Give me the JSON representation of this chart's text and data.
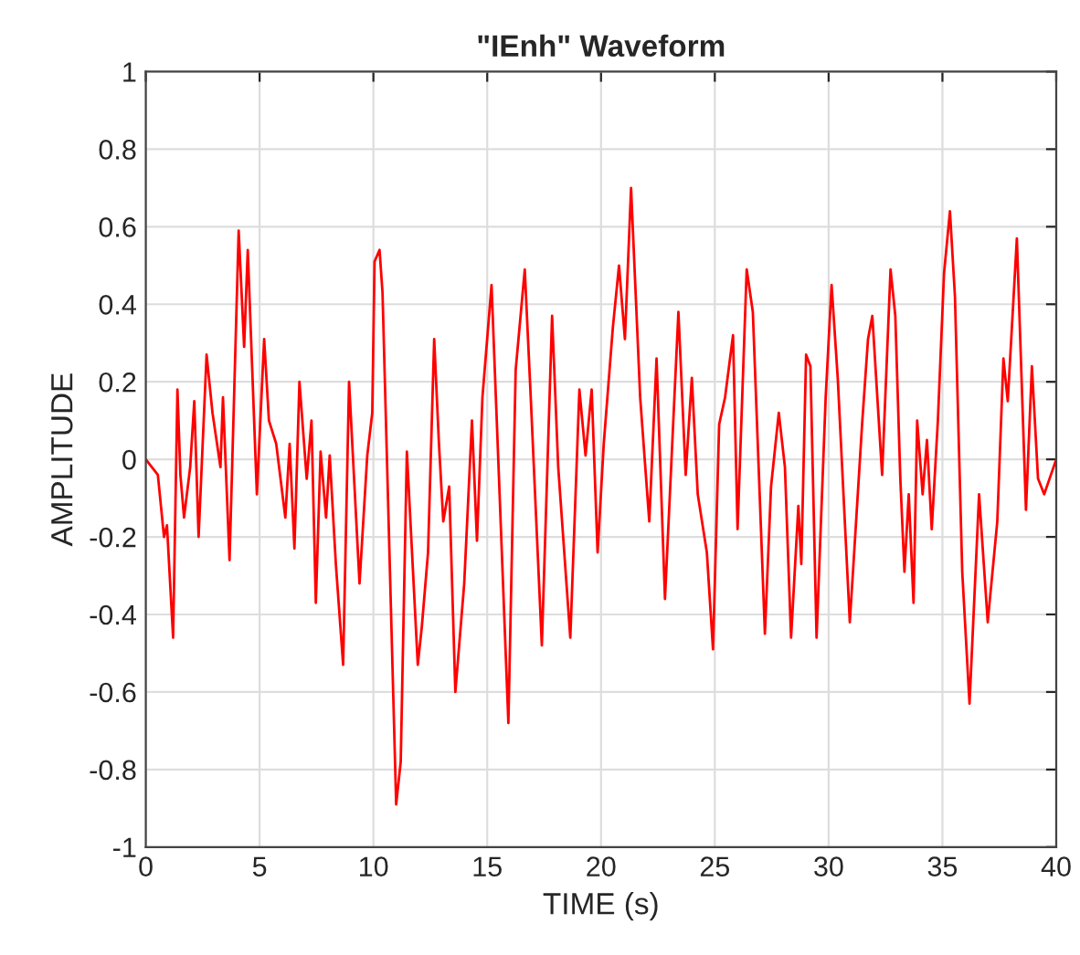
{
  "chart_data": {
    "type": "line",
    "title": "\"IEnh\" Waveform",
    "xlabel": "TIME (s)",
    "ylabel": "AMPLITUDE",
    "xlim": [
      0,
      40
    ],
    "xticks": [
      0,
      5,
      10,
      15,
      20,
      25,
      30,
      35,
      40
    ],
    "ylim": [
      -1,
      1
    ],
    "yticks": [
      -1,
      -0.8,
      -0.6,
      -0.4,
      -0.2,
      0,
      0.2,
      0.4,
      0.6,
      0.8,
      1
    ],
    "grid": true,
    "legend": false,
    "marker": "none",
    "line_style": "solid",
    "series": [
      {
        "color": "#ff0000",
        "x": [
          0,
          0.53,
          0.8,
          0.93,
          1.2,
          1.39,
          1.52,
          1.68,
          1.95,
          2.13,
          2.32,
          2.67,
          2.93,
          3.28,
          3.39,
          3.68,
          4.08,
          4.32,
          4.48,
          4.88,
          5.2,
          5.41,
          5.73,
          6.13,
          6.32,
          6.53,
          6.75,
          7.07,
          7.28,
          7.47,
          7.68,
          7.92,
          8.08,
          8.35,
          8.67,
          8.93,
          9.39,
          9.73,
          9.95,
          10.05,
          10.27,
          10.4,
          11.0,
          11.2,
          11.47,
          11.95,
          12.13,
          12.4,
          12.67,
          12.88,
          13.07,
          13.33,
          13.6,
          13.99,
          14.33,
          14.55,
          14.79,
          15.19,
          15.4,
          15.93,
          16.25,
          16.65,
          16.92,
          17.4,
          17.85,
          18.12,
          18.65,
          19.05,
          19.32,
          19.59,
          19.85,
          20.12,
          20.52,
          20.79,
          21.05,
          21.32,
          21.72,
          22.12,
          22.44,
          22.81,
          23.4,
          23.72,
          23.99,
          24.25,
          24.65,
          24.92,
          25.19,
          25.45,
          25.8,
          26.0,
          26.4,
          26.67,
          27.2,
          27.47,
          27.81,
          28.08,
          28.35,
          28.67,
          28.8,
          29.01,
          29.2,
          29.47,
          29.87,
          30.13,
          30.4,
          30.93,
          31.07,
          31.47,
          31.73,
          31.92,
          32.35,
          32.72,
          32.93,
          33.15,
          33.33,
          33.52,
          33.73,
          33.89,
          34.13,
          34.32,
          34.53,
          34.8,
          35.07,
          35.33,
          35.55,
          35.87,
          36.19,
          36.61,
          36.99,
          37.41,
          37.68,
          37.87,
          38.27,
          38.67,
          38.93,
          39.2,
          39.47,
          40.0
        ],
        "values": [
          0,
          -0.04,
          -0.2,
          -0.17,
          -0.46,
          0.18,
          -0.04,
          -0.15,
          -0.02,
          0.15,
          -0.2,
          0.27,
          0.12,
          -0.02,
          0.16,
          -0.26,
          0.59,
          0.29,
          0.54,
          -0.09,
          0.31,
          0.1,
          0.04,
          -0.15,
          0.04,
          -0.23,
          0.2,
          -0.05,
          0.1,
          -0.37,
          0.02,
          -0.15,
          0.01,
          -0.27,
          -0.53,
          0.2,
          -0.32,
          0.01,
          0.12,
          0.51,
          0.54,
          0.43,
          -0.89,
          -0.78,
          0.02,
          -0.53,
          -0.43,
          -0.24,
          0.31,
          0.04,
          -0.16,
          -0.07,
          -0.6,
          -0.32,
          0.1,
          -0.21,
          0.16,
          0.45,
          0.13,
          -0.68,
          0.23,
          0.49,
          0.15,
          -0.48,
          0.37,
          -0.02,
          -0.46,
          0.18,
          0.01,
          0.18,
          -0.24,
          0.04,
          0.34,
          0.5,
          0.31,
          0.7,
          0.16,
          -0.16,
          0.26,
          -0.36,
          0.38,
          -0.04,
          0.21,
          -0.09,
          -0.24,
          -0.49,
          0.09,
          0.16,
          0.32,
          -0.18,
          0.49,
          0.38,
          -0.45,
          -0.07,
          0.12,
          -0.02,
          -0.46,
          -0.12,
          -0.27,
          0.27,
          0.24,
          -0.46,
          0.16,
          0.45,
          0.21,
          -0.42,
          -0.29,
          0.09,
          0.31,
          0.37,
          -0.04,
          0.49,
          0.37,
          -0.05,
          -0.29,
          -0.09,
          -0.37,
          0.1,
          -0.09,
          0.05,
          -0.18,
          0.1,
          0.48,
          0.64,
          0.42,
          -0.29,
          -0.63,
          -0.09,
          -0.42,
          -0.16,
          0.26,
          0.15,
          0.57,
          -0.13,
          0.24,
          -0.05,
          -0.09,
          0
        ]
      }
    ]
  }
}
